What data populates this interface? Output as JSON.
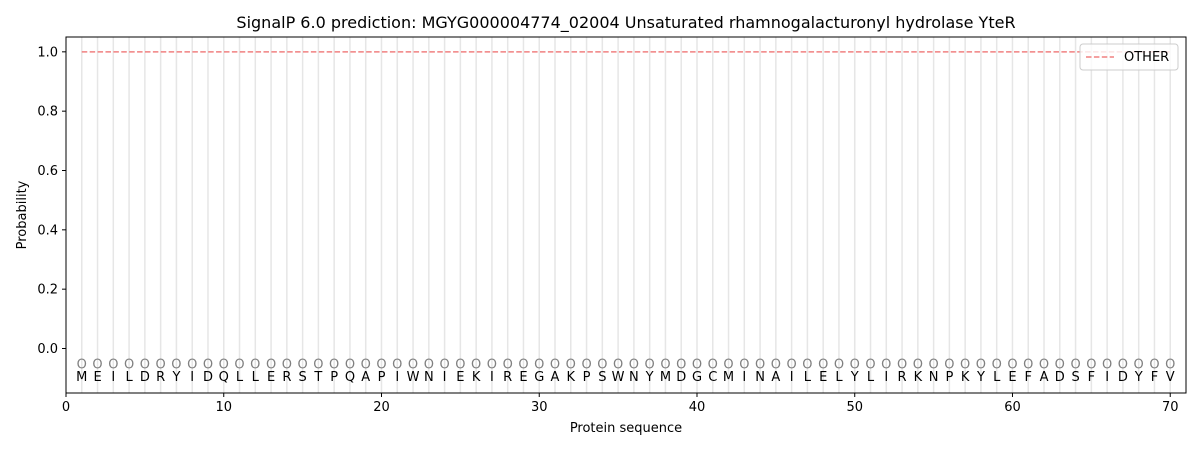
{
  "chart_data": {
    "type": "line",
    "title": "SignalP 6.0 prediction: MGYG000004774_02004 Unsaturated rhamnogalacturonyl hydrolase YteR",
    "xlabel": "Protein sequence",
    "ylabel": "Probability",
    "xlim": [
      0,
      71
    ],
    "ylim": [
      -0.15,
      1.05
    ],
    "xticks": [
      0,
      10,
      20,
      30,
      40,
      50,
      60,
      70
    ],
    "yticks": [
      "0.0",
      "0.2",
      "0.4",
      "0.6",
      "0.8",
      "1.0"
    ],
    "grid": "vertical lines at each residue",
    "legend_position": "top-right",
    "sequence": [
      "M",
      "E",
      "I",
      "L",
      "D",
      "R",
      "Y",
      "I",
      "D",
      "Q",
      "L",
      "L",
      "E",
      "R",
      "S",
      "T",
      "P",
      "Q",
      "A",
      "P",
      "I",
      "W",
      "N",
      "I",
      "E",
      "K",
      "I",
      "R",
      "E",
      "G",
      "A",
      "K",
      "P",
      "S",
      "W",
      "N",
      "Y",
      "M",
      "D",
      "G",
      "C",
      "M",
      "I",
      "N",
      "A",
      "I",
      "L",
      "E",
      "L",
      "Y",
      "L",
      "I",
      "R",
      "K",
      "N",
      "P",
      "K",
      "Y",
      "L",
      "E",
      "F",
      "A",
      "D",
      "S",
      "F",
      "I",
      "D",
      "Y",
      "F",
      "V"
    ],
    "prediction_label": "O",
    "series": [
      {
        "name": "OTHER",
        "color": "#f08080",
        "style": "dashed",
        "x": [
          1,
          70
        ],
        "y": [
          1.0,
          1.0
        ]
      }
    ]
  }
}
